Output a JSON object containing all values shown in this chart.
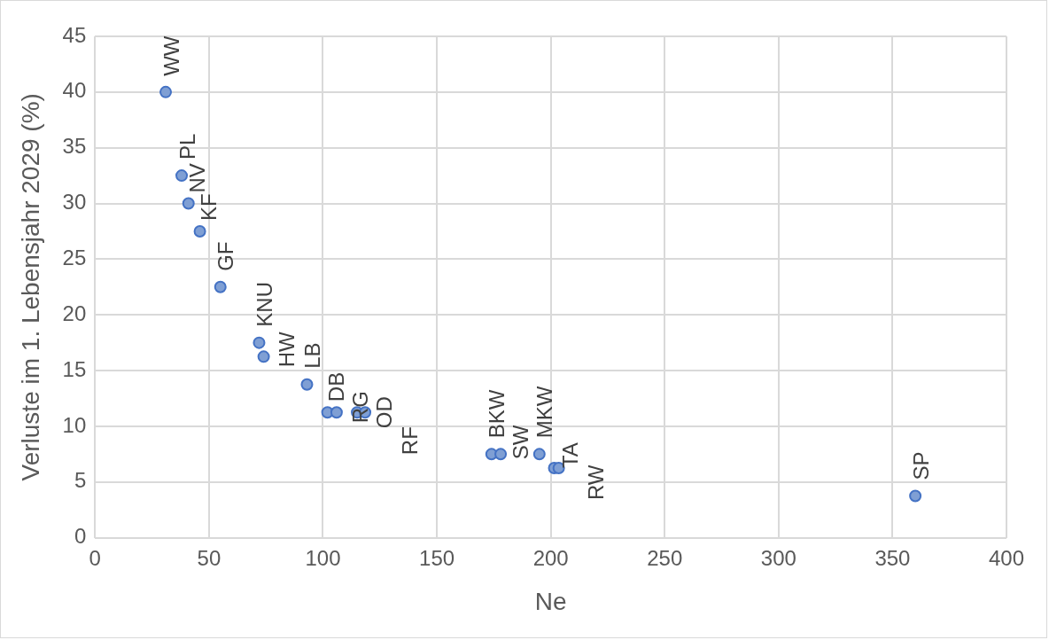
{
  "chart_data": {
    "type": "scatter",
    "xlabel": "Ne",
    "ylabel": "Verluste im 1. Lebensjahr 2029 (%)",
    "x": [
      31,
      38,
      41,
      46,
      55,
      72,
      74,
      93,
      102,
      106,
      115,
      118.5,
      174,
      178,
      195,
      201.5,
      203.5,
      360
    ],
    "series": [
      {
        "color": "#7f9fd4",
        "values": [
          40,
          32.5,
          30,
          27.5,
          22.5,
          17.5,
          16.25,
          13.75,
          11.25,
          11.25,
          11.25,
          11.25,
          7.5,
          7.5,
          7.5,
          6.25,
          6.25,
          3.75
        ]
      }
    ],
    "xlim": [
      0,
      400
    ],
    "xticks": [
      0,
      50,
      100,
      150,
      200,
      250,
      300,
      350,
      400
    ],
    "ylim": [
      0,
      45
    ],
    "yticks": [
      0,
      5,
      10,
      15,
      20,
      25,
      30,
      35,
      40,
      45
    ],
    "grid": true,
    "legend": false,
    "marker": "circle",
    "annotations": [
      {
        "text": "WW",
        "x": 31,
        "y": 40
      },
      {
        "text": "PL",
        "x": 38,
        "y": 32.5
      },
      {
        "text": "NV",
        "x": 41,
        "y": 30
      },
      {
        "text": "KF",
        "x": 46,
        "y": 27.5
      },
      {
        "text": "GF",
        "x": 55,
        "y": 22.5
      },
      {
        "text": "KNU",
        "x": 72,
        "y": 17.5
      },
      {
        "text": "HW",
        "x": 74,
        "y": 16.25
      },
      {
        "text": "LB",
        "x": 93,
        "y": 13.75
      },
      {
        "text": "DB",
        "x": 102,
        "y": 11.25
      },
      {
        "text": "RG",
        "x": 106,
        "y": 11.25
      },
      {
        "text": "OD",
        "x": 115,
        "y": 11.25
      },
      {
        "text": "RF",
        "x": 118.5,
        "y": 11.25
      },
      {
        "text": "BKW",
        "x": 174,
        "y": 7.5
      },
      {
        "text": "SW",
        "x": 178,
        "y": 7.5
      },
      {
        "text": "MKW",
        "x": 195,
        "y": 7.5
      },
      {
        "text": "TA",
        "x": 201.5,
        "y": 6.25
      },
      {
        "text": "RW",
        "x": 203.5,
        "y": 6.25
      },
      {
        "text": "SP",
        "x": 360,
        "y": 3.75
      }
    ]
  }
}
